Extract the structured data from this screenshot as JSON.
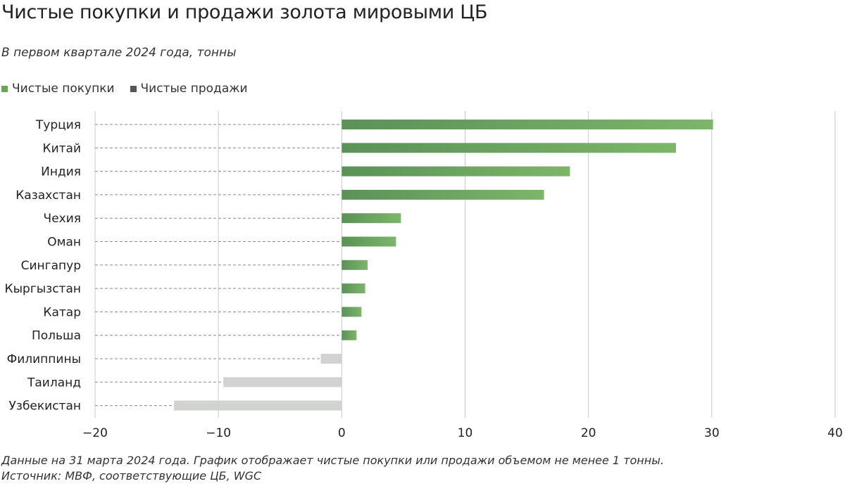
{
  "colors": {
    "buy_start": "#5a9258",
    "buy_end": "#7db56a",
    "sell": "#d0d3d0",
    "legend_buy": "#6aa35e",
    "legend_sell": "#555555",
    "grid": "#c9c9c9",
    "guide": "#8a8a8a"
  },
  "chart_data": {
    "type": "bar",
    "orientation": "horizontal",
    "title": "Чистые покупки и продажи золота мировыми ЦБ",
    "subtitle": "В первом квартале 2024 года, тонны",
    "legend": [
      {
        "name": "Чистые покупки",
        "color_key": "legend_buy"
      },
      {
        "name": "Чистые продажи",
        "color_key": "legend_sell"
      }
    ],
    "categories": [
      "Турция",
      "Китай",
      "Индия",
      "Казахстан",
      "Чехия",
      "Оман",
      "Сингапур",
      "Кыргызстан",
      "Катар",
      "Польша",
      "Филиппины",
      "Таиланд",
      "Узбекистан"
    ],
    "values": [
      30.1,
      27.1,
      18.5,
      16.4,
      4.8,
      4.4,
      2.1,
      1.9,
      1.6,
      1.2,
      -1.7,
      -9.6,
      -13.6
    ],
    "xlim": [
      -20,
      40
    ],
    "xticks": [
      -20,
      -10,
      0,
      10,
      20,
      30,
      40
    ],
    "xtick_labels": [
      "−20",
      "−10",
      "0",
      "10",
      "20",
      "30",
      "40"
    ],
    "grid": true,
    "xlabel": "",
    "ylabel": ""
  },
  "footnote": {
    "line1": "Данные на 31 марта 2024 года. График отображает чистые покупки или продажи объемом не менее 1 тонны.",
    "line2": "Источник: МВФ, соответствующие ЦБ, WGC"
  }
}
